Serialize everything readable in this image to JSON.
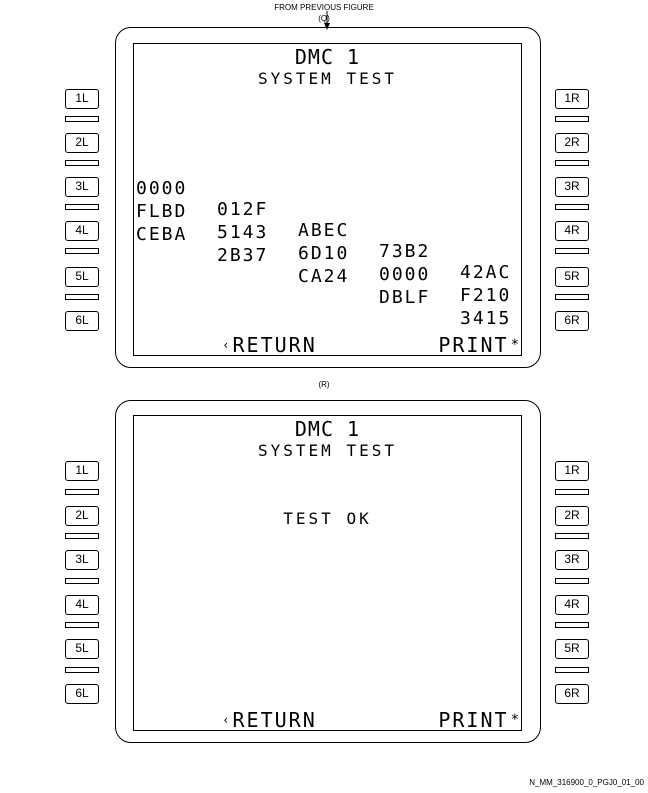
{
  "top_caption": "FROM PREVIOUS FIGURE",
  "top_step": "(Q)",
  "mid_step": "(R)",
  "footer_ref": "N_MM_316900_0_PGJ0_01_00",
  "lsk_left": [
    "1L",
    "2L",
    "3L",
    "4L",
    "5L",
    "6L"
  ],
  "lsk_right": [
    "1R",
    "2R",
    "3R",
    "4R",
    "5R",
    "6R"
  ],
  "screen_q": {
    "title": "DMC 1",
    "subtitle": "SYSTEM TEST",
    "rows": [
      [
        "0000",
        "012F",
        "ABEC",
        "73B2",
        "42AC"
      ],
      [
        "FLBD",
        "5143",
        "6D10",
        "0000",
        "F210"
      ],
      [
        "CEBA",
        "2B37",
        "CA24",
        "DBLF",
        "3415"
      ]
    ],
    "left_action": "RETURN",
    "right_action": "PRINT"
  },
  "screen_r": {
    "title": "DMC 1",
    "subtitle": "SYSTEM TEST",
    "message": "TEST OK",
    "left_action": "RETURN",
    "right_action": "PRINT"
  }
}
